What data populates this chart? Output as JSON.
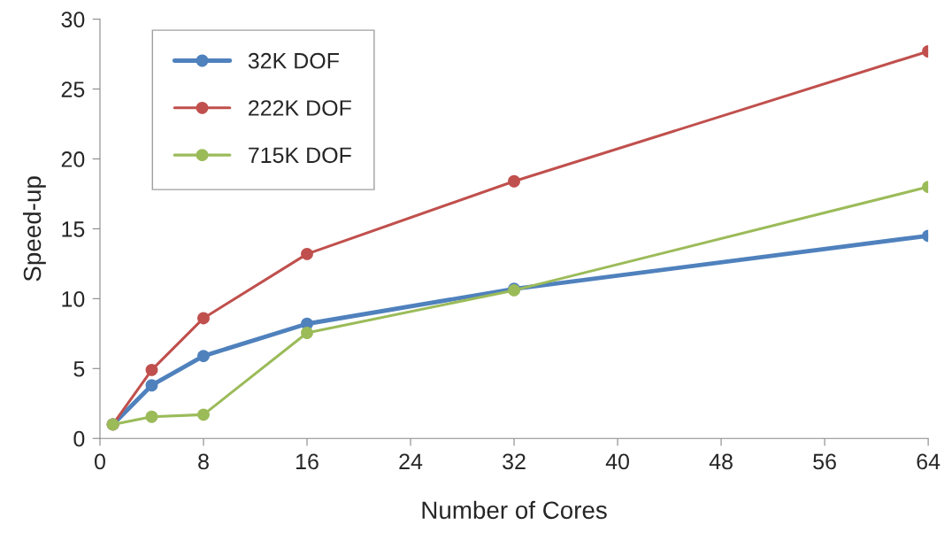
{
  "chart_data": {
    "type": "line",
    "xlabel": "Number of Cores",
    "ylabel": "Speed-up",
    "x": [
      1,
      4,
      8,
      16,
      32,
      64
    ],
    "series": [
      {
        "name": "32K DOF",
        "color": "#4f81bd",
        "values": [
          1.0,
          3.8,
          5.9,
          8.2,
          10.7,
          14.5
        ]
      },
      {
        "name": "222K DOF",
        "color": "#c0504d",
        "values": [
          1.0,
          4.9,
          8.6,
          13.2,
          18.4,
          27.7
        ]
      },
      {
        "name": "715K DOF",
        "color": "#9bbb59",
        "values": [
          1.0,
          1.55,
          1.7,
          7.55,
          10.6,
          18.0
        ]
      }
    ],
    "xlim": [
      0,
      64
    ],
    "xticks": [
      0,
      8,
      16,
      24,
      32,
      40,
      48,
      56,
      64
    ],
    "ylim": [
      0,
      30
    ],
    "yticks": [
      0,
      5,
      10,
      15,
      20,
      25,
      30
    ],
    "grid": false,
    "legend": "top left",
    "marker": "circle",
    "line_style": "solid"
  }
}
